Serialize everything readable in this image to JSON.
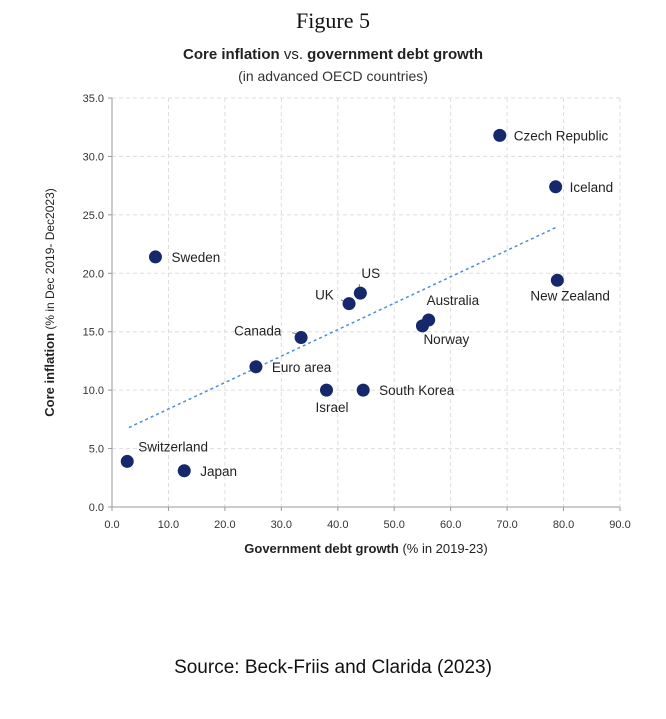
{
  "figure_label": "Figure 5",
  "title": {
    "part1": "Core inflation",
    "part2": " vs. ",
    "part3": "government debt growth"
  },
  "subtitle": "(in advanced OECD countries)",
  "source": "Source: Beck-Friis and Clarida (2023)",
  "chart_data": {
    "type": "scatter",
    "title": "Core inflation vs. government debt growth",
    "subtitle": "(in advanced OECD countries)",
    "xlabel_bold": "Government debt growth",
    "xlabel_rest": " (% in 2019-23)",
    "ylabel_bold": "Core inflation",
    "ylabel_rest": " (% in Dec 2019- Dec2023)",
    "xlim": [
      0,
      90
    ],
    "ylim": [
      0,
      35
    ],
    "xticks": [
      "0.0",
      "10.0",
      "20.0",
      "30.0",
      "40.0",
      "50.0",
      "60.0",
      "70.0",
      "80.0",
      "90.0"
    ],
    "yticks": [
      "0.0",
      "5.0",
      "10.0",
      "15.0",
      "20.0",
      "25.0",
      "30.0",
      "35.0"
    ],
    "grid": true,
    "marker_color": "#14286b",
    "trend_color": "#4a90d9",
    "trendline": {
      "x": [
        3,
        79
      ],
      "y": [
        6.8,
        24.0
      ]
    },
    "points": [
      {
        "label": "Czech Republic",
        "x": 68.7,
        "y": 31.8
      },
      {
        "label": "Iceland",
        "x": 78.6,
        "y": 27.4
      },
      {
        "label": "Sweden",
        "x": 7.7,
        "y": 21.4
      },
      {
        "label": "New Zealand",
        "x": 78.9,
        "y": 19.4
      },
      {
        "label": "US",
        "x": 44.0,
        "y": 18.3
      },
      {
        "label": "UK",
        "x": 42.0,
        "y": 17.4
      },
      {
        "label": "Australia",
        "x": 56.1,
        "y": 16.0
      },
      {
        "label": "Norway",
        "x": 55.0,
        "y": 15.5
      },
      {
        "label": "Canada",
        "x": 33.5,
        "y": 14.5
      },
      {
        "label": "Euro area",
        "x": 25.5,
        "y": 12.0
      },
      {
        "label": "Israel",
        "x": 38.0,
        "y": 10.0
      },
      {
        "label": "South Korea",
        "x": 44.5,
        "y": 10.0
      },
      {
        "label": "Switzerland",
        "x": 2.7,
        "y": 3.9
      },
      {
        "label": "Japan",
        "x": 12.8,
        "y": 3.1
      }
    ]
  }
}
